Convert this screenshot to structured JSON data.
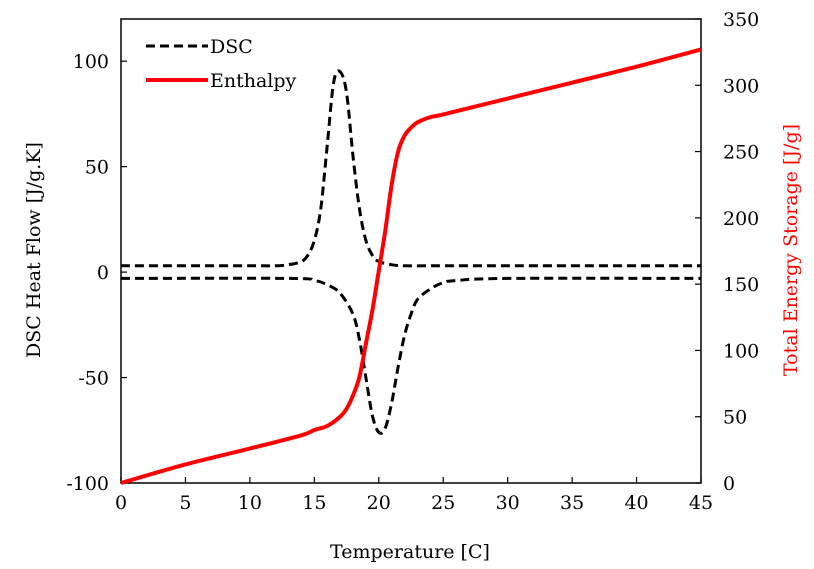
{
  "chart_data": {
    "type": "line",
    "xlabel": "Temperature [C]",
    "ylabel_left": "DSC Heat Flow [J/g.K]",
    "ylabel_right": "Total Energy Storage [J/g]",
    "xlim": [
      0,
      45
    ],
    "ylim_left": [
      -100,
      120
    ],
    "ylim_right": [
      0,
      350
    ],
    "x_ticks": [
      0,
      5,
      10,
      15,
      20,
      25,
      30,
      35,
      40,
      45
    ],
    "y_left_ticks": [
      -100,
      -50,
      0,
      50,
      100
    ],
    "y_right_ticks": [
      0,
      50,
      100,
      150,
      200,
      250,
      300,
      350
    ],
    "grid": false,
    "legend_position": "top-left",
    "colors": {
      "dsc": "#000000",
      "enthalpy": "#ff0000",
      "right_axis_title": "#ff0000"
    },
    "series": [
      {
        "name": "DSC",
        "axis": "left",
        "style": "dashed",
        "x": [
          0,
          10,
          12,
          13,
          14,
          14.5,
          15,
          15.5,
          16,
          16.5,
          17,
          17.5,
          18,
          18.5,
          19,
          19.5,
          20,
          21,
          22,
          25,
          30,
          45
        ],
        "y": [
          3,
          3,
          3,
          3.5,
          5,
          8,
          15,
          30,
          60,
          90,
          95,
          85,
          55,
          30,
          15,
          8,
          5,
          3.5,
          3,
          3,
          3,
          3
        ]
      },
      {
        "name": "DSC",
        "axis": "left",
        "style": "dashed",
        "x": [
          0,
          13,
          15,
          16,
          17,
          18,
          18.5,
          19,
          19.5,
          20,
          20.5,
          21,
          21.5,
          22,
          22.5,
          23,
          24,
          25,
          26,
          30,
          45
        ],
        "y": [
          -3,
          -3,
          -4,
          -6,
          -10,
          -20,
          -32,
          -50,
          -68,
          -76,
          -74,
          -62,
          -45,
          -30,
          -20,
          -13,
          -8,
          -5,
          -4,
          -3,
          -3
        ]
      },
      {
        "name": "Enthalpy",
        "axis": "right",
        "style": "solid",
        "x": [
          0,
          5,
          10,
          14,
          15,
          16,
          17,
          17.5,
          18,
          18.5,
          19,
          19.5,
          20,
          20.5,
          21,
          21.5,
          22,
          22.5,
          23,
          24,
          25,
          30,
          35,
          40,
          45
        ],
        "y": [
          0,
          14,
          26,
          36,
          40,
          43,
          50,
          56,
          66,
          80,
          105,
          130,
          160,
          190,
          225,
          250,
          262,
          268,
          272,
          276,
          278,
          290,
          302,
          314,
          327
        ]
      }
    ]
  }
}
